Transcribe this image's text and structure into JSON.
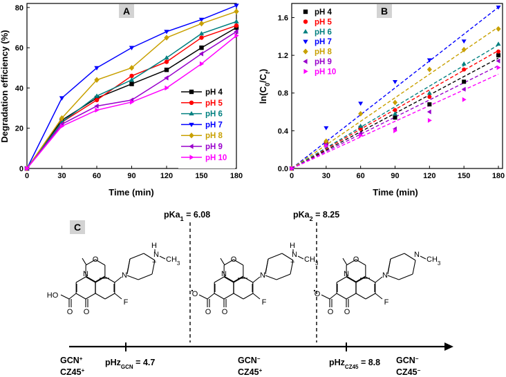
{
  "chart_data": [
    {
      "type": "line",
      "panel": "A",
      "xlabel": "Time (min)",
      "ylabel": "Degradation efficiency (%)",
      "xlim": [
        0,
        180
      ],
      "ylim": [
        0,
        82
      ],
      "xticks": [
        0,
        30,
        60,
        90,
        120,
        150,
        180
      ],
      "yticks": [
        0,
        20,
        40,
        60,
        80
      ],
      "x": [
        0,
        30,
        60,
        90,
        120,
        150,
        180
      ],
      "legend_position": "lower-right",
      "series": [
        {
          "name": "pH 4",
          "color": "#000000",
          "marker": "square",
          "values": [
            0,
            24,
            35,
            42,
            49,
            60,
            70
          ]
        },
        {
          "name": "pH 5",
          "color": "#ff0000",
          "marker": "circle",
          "values": [
            0,
            23,
            34,
            46,
            53,
            65,
            71
          ]
        },
        {
          "name": "pH 6",
          "color": "#008080",
          "marker": "triangle-up",
          "values": [
            0,
            23,
            36,
            44,
            55,
            67,
            73
          ]
        },
        {
          "name": "pH 7",
          "color": "#0000ff",
          "marker": "triangle-down",
          "values": [
            0,
            35,
            50,
            60,
            68,
            74,
            81
          ]
        },
        {
          "name": "pH 8",
          "color": "#c8a000",
          "marker": "diamond",
          "values": [
            0,
            25,
            44,
            50,
            65,
            72,
            78
          ]
        },
        {
          "name": "pH 9",
          "color": "#9900cc",
          "marker": "triangle-left",
          "values": [
            0,
            22,
            31,
            34,
            45,
            57,
            68
          ]
        },
        {
          "name": "pH 10",
          "color": "#ff00ff",
          "marker": "triangle-right",
          "values": [
            0,
            21,
            29,
            33,
            40,
            52,
            66
          ]
        }
      ]
    },
    {
      "type": "scatter",
      "panel": "B",
      "xlabel": "Time (min)",
      "ylabel": "ln(C0/Ct)",
      "xlim": [
        0,
        180
      ],
      "ylim": [
        0,
        1.75
      ],
      "xticks": [
        0,
        30,
        60,
        90,
        120,
        150,
        180
      ],
      "yticks": [
        0.0,
        0.4,
        0.8,
        1.2,
        1.6
      ],
      "x": [
        0,
        30,
        60,
        90,
        120,
        150,
        180
      ],
      "fit": "dashed linear through origin",
      "legend_position": "top-left",
      "series": [
        {
          "name": "pH 4",
          "color": "#000000",
          "marker": "square",
          "values": [
            0,
            0.27,
            0.43,
            0.54,
            0.68,
            0.92,
            1.2
          ],
          "fit_end": 1.17
        },
        {
          "name": "pH 5",
          "color": "#ff0000",
          "marker": "circle",
          "values": [
            0,
            0.27,
            0.42,
            0.62,
            0.76,
            1.05,
            1.24
          ],
          "fit_end": 1.25
        },
        {
          "name": "pH 6",
          "color": "#008080",
          "marker": "triangle-up",
          "values": [
            0,
            0.26,
            0.45,
            0.58,
            0.8,
            1.11,
            1.32
          ],
          "fit_end": 1.31
        },
        {
          "name": "pH 7",
          "color": "#0000ff",
          "marker": "triangle-down",
          "values": [
            0,
            0.43,
            0.69,
            0.92,
            1.15,
            1.35,
            1.71
          ],
          "fit_end": 1.71
        },
        {
          "name": "pH 8",
          "color": "#c8a000",
          "marker": "diamond",
          "values": [
            0,
            0.29,
            0.58,
            0.7,
            1.05,
            1.26,
            1.48
          ],
          "fit_end": 1.5
        },
        {
          "name": "pH 9",
          "color": "#9900cc",
          "marker": "triangle-left",
          "values": [
            0,
            0.25,
            0.37,
            0.42,
            0.6,
            0.84,
            1.14
          ],
          "fit_end": 1.09
        },
        {
          "name": "pH 10",
          "color": "#ff00ff",
          "marker": "triangle-right",
          "values": [
            0,
            0.24,
            0.35,
            0.4,
            0.51,
            0.73,
            1.07
          ],
          "fit_end": 1.0
        }
      ]
    }
  ],
  "panel_labels": {
    "a": "A",
    "b": "B",
    "c": "C"
  },
  "scheme": {
    "pka1_text": "pKa",
    "pka1_sub": "1",
    "pka1_value": " = 6.08",
    "pka2_text": "pKa",
    "pka2_sub": "2",
    "pka2_value": " = 8.25",
    "left_line1": "GCN",
    "left_line1_sup": "+",
    "left_line2": "CZ45",
    "left_line2_sup": "+",
    "mid_line1": "GCN",
    "mid_line1_sup": "−",
    "mid_line2": "CZ45",
    "mid_line2_sup": "+",
    "right_line1": "GCN",
    "right_line1_sup": "−",
    "right_line2": "CZ45",
    "right_line2_sup": "−",
    "phz1_text": "pHz",
    "phz1_sub": "GCN",
    "phz1_value": " = 4.7",
    "phz2_text": "pHz",
    "phz2_sub": "CZ45",
    "phz2_value": " = 8.8"
  },
  "molecules": {
    "ho": "HO",
    "o": "O",
    "n": "N",
    "f": "F",
    "h": "H",
    "methyl": "CH",
    "methyl_sub": "3",
    "plus": "+"
  }
}
